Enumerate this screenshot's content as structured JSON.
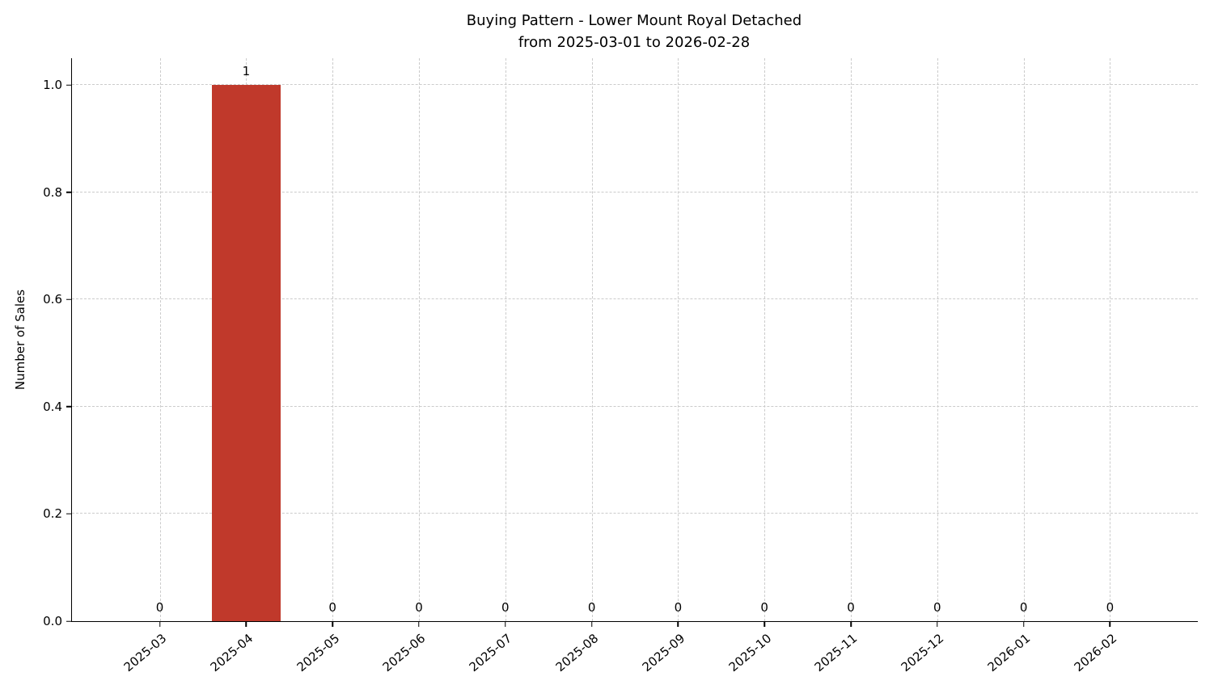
{
  "chart_data": {
    "type": "bar",
    "title": "Buying Pattern - Lower Mount Royal Detached",
    "subtitle": "from 2025-03-01 to 2026-02-28",
    "ylabel": "Number of Sales",
    "xlabel": "",
    "categories": [
      "2025-03",
      "2025-04",
      "2025-05",
      "2025-06",
      "2025-07",
      "2025-08",
      "2025-09",
      "2025-10",
      "2025-11",
      "2025-12",
      "2026-01",
      "2026-02"
    ],
    "values": [
      0,
      1,
      0,
      0,
      0,
      0,
      0,
      0,
      0,
      0,
      0,
      0
    ],
    "bar_labels": [
      "0",
      "1",
      "0",
      "0",
      "0",
      "0",
      "0",
      "0",
      "0",
      "0",
      "0",
      "0"
    ],
    "yticks": [
      0.0,
      0.2,
      0.4,
      0.6,
      0.8,
      1.0
    ],
    "ytick_labels": [
      "0.0",
      "0.2",
      "0.4",
      "0.6",
      "0.8",
      "1.0"
    ],
    "ylim": [
      0,
      1.05
    ],
    "grid": true,
    "grid_style": "dashed",
    "bar_color": "#c0392b",
    "legend_position": "none"
  }
}
